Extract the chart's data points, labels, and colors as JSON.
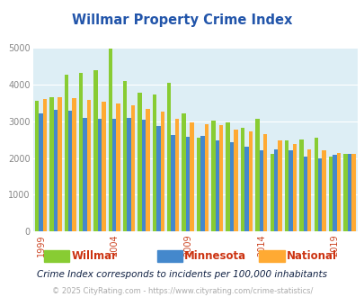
{
  "title": "Willmar Property Crime Index",
  "subtitle": "Crime Index corresponds to incidents per 100,000 inhabitants",
  "footer": "© 2025 CityRating.com - https://www.cityrating.com/crime-statistics/",
  "years": [
    1999,
    2000,
    2001,
    2002,
    2003,
    2004,
    2005,
    2006,
    2007,
    2008,
    2009,
    2010,
    2011,
    2012,
    2013,
    2014,
    2015,
    2016,
    2017,
    2018,
    2019,
    2020
  ],
  "willmar": [
    3550,
    3650,
    4250,
    4300,
    4380,
    4970,
    4080,
    3780,
    3730,
    4030,
    3200,
    2550,
    3020,
    2960,
    2830,
    3070,
    2120,
    2490,
    2500,
    2560,
    2040,
    2110
  ],
  "minnesota": [
    3200,
    3300,
    3280,
    3100,
    3060,
    3060,
    3080,
    3050,
    2870,
    2630,
    2580,
    2610,
    2470,
    2440,
    2310,
    2210,
    2240,
    2200,
    2050,
    2000,
    2080,
    2110
  ],
  "national": [
    3600,
    3650,
    3620,
    3580,
    3540,
    3490,
    3430,
    3340,
    3260,
    3060,
    2970,
    2930,
    2890,
    2770,
    2730,
    2650,
    2490,
    2370,
    2230,
    2200,
    2140,
    2110
  ],
  "willmar_color": "#88cc33",
  "minnesota_color": "#4488cc",
  "national_color": "#ffaa33",
  "bg_color": "#ddeef5",
  "title_color": "#2255aa",
  "subtitle_color": "#112244",
  "footer_color": "#aaaaaa",
  "legend_label_color": "#cc3311",
  "ylim": [
    0,
    5000
  ],
  "yticks": [
    0,
    1000,
    2000,
    3000,
    4000,
    5000
  ],
  "xtick_years": [
    1999,
    2004,
    2009,
    2014,
    2019
  ],
  "bar_width": 0.27
}
